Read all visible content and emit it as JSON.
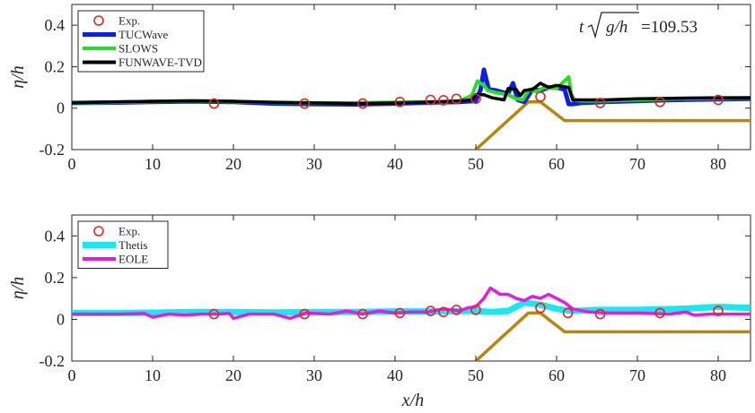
{
  "chart_data": [
    {
      "type": "line",
      "ylabel": "η/h",
      "xlabel": "",
      "xlim": [
        0,
        84
      ],
      "ylim": [
        -0.2,
        0.5
      ],
      "xticks": [
        "0",
        "10",
        "20",
        "30",
        "40",
        "50",
        "60",
        "70",
        "80"
      ],
      "yticks": [
        "-0.2",
        "0",
        "0.2",
        "0.4"
      ],
      "annotation": "t√(g/h) =109.53",
      "annotation_prefix": "t",
      "annotation_radicand": "g/h",
      "annotation_value": "=109.53",
      "legend_position": "top-left",
      "experiment": {
        "name": "Exp.",
        "color": "#e8251c",
        "x": [
          17.6,
          28.8,
          36.0,
          40.6,
          44.4,
          46.0,
          47.6,
          50.0,
          58.0,
          65.4,
          72.8,
          80.0
        ],
        "y": [
          0.022,
          0.022,
          0.022,
          0.03,
          0.04,
          0.038,
          0.045,
          0.045,
          0.055,
          0.025,
          0.03,
          0.04
        ]
      },
      "bathymetry": {
        "name": "bathymetry",
        "color": "#b8860b",
        "x": [
          50,
          56.5,
          58,
          61,
          84
        ],
        "y": [
          -0.2,
          0.03,
          0.03,
          -0.06,
          -0.06
        ]
      },
      "series": [
        {
          "name": "TUCWave",
          "color": "#0b1fe8",
          "width": 5,
          "x": [
            0,
            5,
            10,
            15,
            20,
            25,
            30,
            35,
            40,
            45,
            48,
            50,
            50.6,
            51.0,
            51.6,
            52.5,
            54,
            54.6,
            55.2,
            56,
            57,
            58,
            59,
            60,
            61,
            61.5,
            62,
            63,
            66,
            70,
            75,
            80,
            84
          ],
          "y": [
            0.025,
            0.027,
            0.03,
            0.033,
            0.03,
            0.022,
            0.02,
            0.018,
            0.022,
            0.028,
            0.03,
            0.035,
            0.09,
            0.185,
            0.09,
            0.085,
            0.07,
            0.12,
            0.04,
            0.03,
            0.09,
            0.085,
            0.1,
            0.1,
            0.09,
            0.02,
            0.02,
            0.025,
            0.03,
            0.035,
            0.04,
            0.043,
            0.045
          ]
        },
        {
          "name": "SLOWS",
          "color": "#22e022",
          "width": 4,
          "x": [
            0,
            5,
            10,
            15,
            20,
            25,
            30,
            35,
            40,
            45,
            48,
            49.5,
            50.2,
            51.0,
            51.5,
            52.5,
            54,
            55,
            55.8,
            56.6,
            57.5,
            58.5,
            60,
            61.5,
            61.8,
            62.2,
            63,
            66,
            70,
            75,
            80,
            84
          ],
          "y": [
            0.025,
            0.028,
            0.032,
            0.035,
            0.032,
            0.028,
            0.025,
            0.025,
            0.028,
            0.03,
            0.035,
            0.06,
            0.13,
            0.11,
            0.085,
            0.075,
            0.065,
            0.045,
            0.04,
            0.09,
            0.08,
            0.1,
            0.095,
            0.15,
            0.07,
            0.04,
            0.035,
            0.035,
            0.04,
            0.045,
            0.048,
            0.05
          ]
        },
        {
          "name": "FUNWAVE-TVD",
          "color": "#000000",
          "width": 3.5,
          "x": [
            0,
            5,
            10,
            15,
            20,
            25,
            30,
            35,
            40,
            45,
            48,
            49.5,
            50,
            51,
            52,
            53.5,
            54,
            55,
            55.5,
            56,
            57,
            58,
            59,
            60,
            61.5,
            62,
            63,
            66,
            70,
            75,
            80,
            84
          ],
          "y": [
            0.025,
            0.03,
            0.033,
            0.035,
            0.033,
            0.028,
            0.025,
            0.022,
            0.025,
            0.03,
            0.035,
            0.04,
            0.065,
            0.065,
            0.05,
            0.04,
            0.095,
            0.09,
            0.06,
            0.085,
            0.09,
            0.12,
            0.1,
            0.11,
            0.1,
            0.04,
            0.04,
            0.04,
            0.045,
            0.048,
            0.05,
            0.05
          ]
        }
      ]
    },
    {
      "type": "line",
      "ylabel": "η/h",
      "xlabel": "x/h",
      "xlim": [
        0,
        84
      ],
      "ylim": [
        -0.2,
        0.5
      ],
      "xticks": [
        "0",
        "10",
        "20",
        "30",
        "40",
        "50",
        "60",
        "70",
        "80"
      ],
      "yticks": [
        "-0.2",
        "0",
        "0.2",
        "0.4"
      ],
      "legend_position": "top-left",
      "experiment": {
        "name": "Exp.",
        "color": "#e8251c",
        "x": [
          17.6,
          28.8,
          36.0,
          40.6,
          44.4,
          46.0,
          47.6,
          50.0,
          58.0,
          61.4,
          65.4,
          72.8,
          80.0
        ],
        "y": [
          0.025,
          0.025,
          0.025,
          0.03,
          0.04,
          0.035,
          0.045,
          0.045,
          0.055,
          0.03,
          0.025,
          0.03,
          0.04
        ]
      },
      "bathymetry": {
        "name": "bathymetry",
        "color": "#b8860b",
        "x": [
          50,
          56.5,
          58,
          61,
          84
        ],
        "y": [
          -0.2,
          0.03,
          0.03,
          -0.06,
          -0.06
        ]
      },
      "series": [
        {
          "name": "Thetis",
          "color": "#19e8f0",
          "width": 7,
          "x": [
            0,
            5,
            10,
            15,
            20,
            25,
            30,
            35,
            40,
            45,
            48,
            50,
            52,
            54,
            56,
            58,
            60,
            62,
            65,
            70,
            75,
            78,
            80,
            84
          ],
          "y": [
            0.03,
            0.03,
            0.032,
            0.035,
            0.035,
            0.033,
            0.035,
            0.035,
            0.038,
            0.038,
            0.04,
            0.04,
            0.035,
            0.04,
            0.08,
            0.07,
            0.05,
            0.04,
            0.045,
            0.045,
            0.05,
            0.055,
            0.06,
            0.055
          ]
        },
        {
          "name": "EOLE",
          "color": "#e21ce2",
          "width": 3.5,
          "x": [
            0,
            3,
            6,
            9,
            10,
            12,
            14,
            16,
            18,
            19.5,
            20,
            22,
            25,
            27,
            29,
            32,
            34,
            36,
            38,
            40,
            42,
            44,
            46,
            48,
            49,
            50,
            51,
            51.8,
            53,
            54,
            55,
            56,
            57,
            58,
            59,
            60,
            61,
            62,
            64,
            66,
            70,
            74,
            76,
            77,
            79,
            84
          ],
          "y": [
            0.025,
            0.025,
            0.025,
            0.028,
            0.01,
            0.025,
            0.02,
            0.025,
            0.025,
            0.028,
            0.005,
            0.025,
            0.025,
            0.005,
            0.03,
            0.025,
            0.04,
            0.025,
            0.04,
            0.03,
            0.035,
            0.035,
            0.05,
            0.04,
            0.055,
            0.06,
            0.1,
            0.15,
            0.12,
            0.12,
            0.1,
            0.09,
            0.11,
            0.1,
            0.12,
            0.1,
            0.08,
            0.05,
            0.035,
            0.03,
            0.03,
            0.025,
            0.035,
            0.02,
            0.025,
            0.025
          ]
        }
      ]
    }
  ]
}
